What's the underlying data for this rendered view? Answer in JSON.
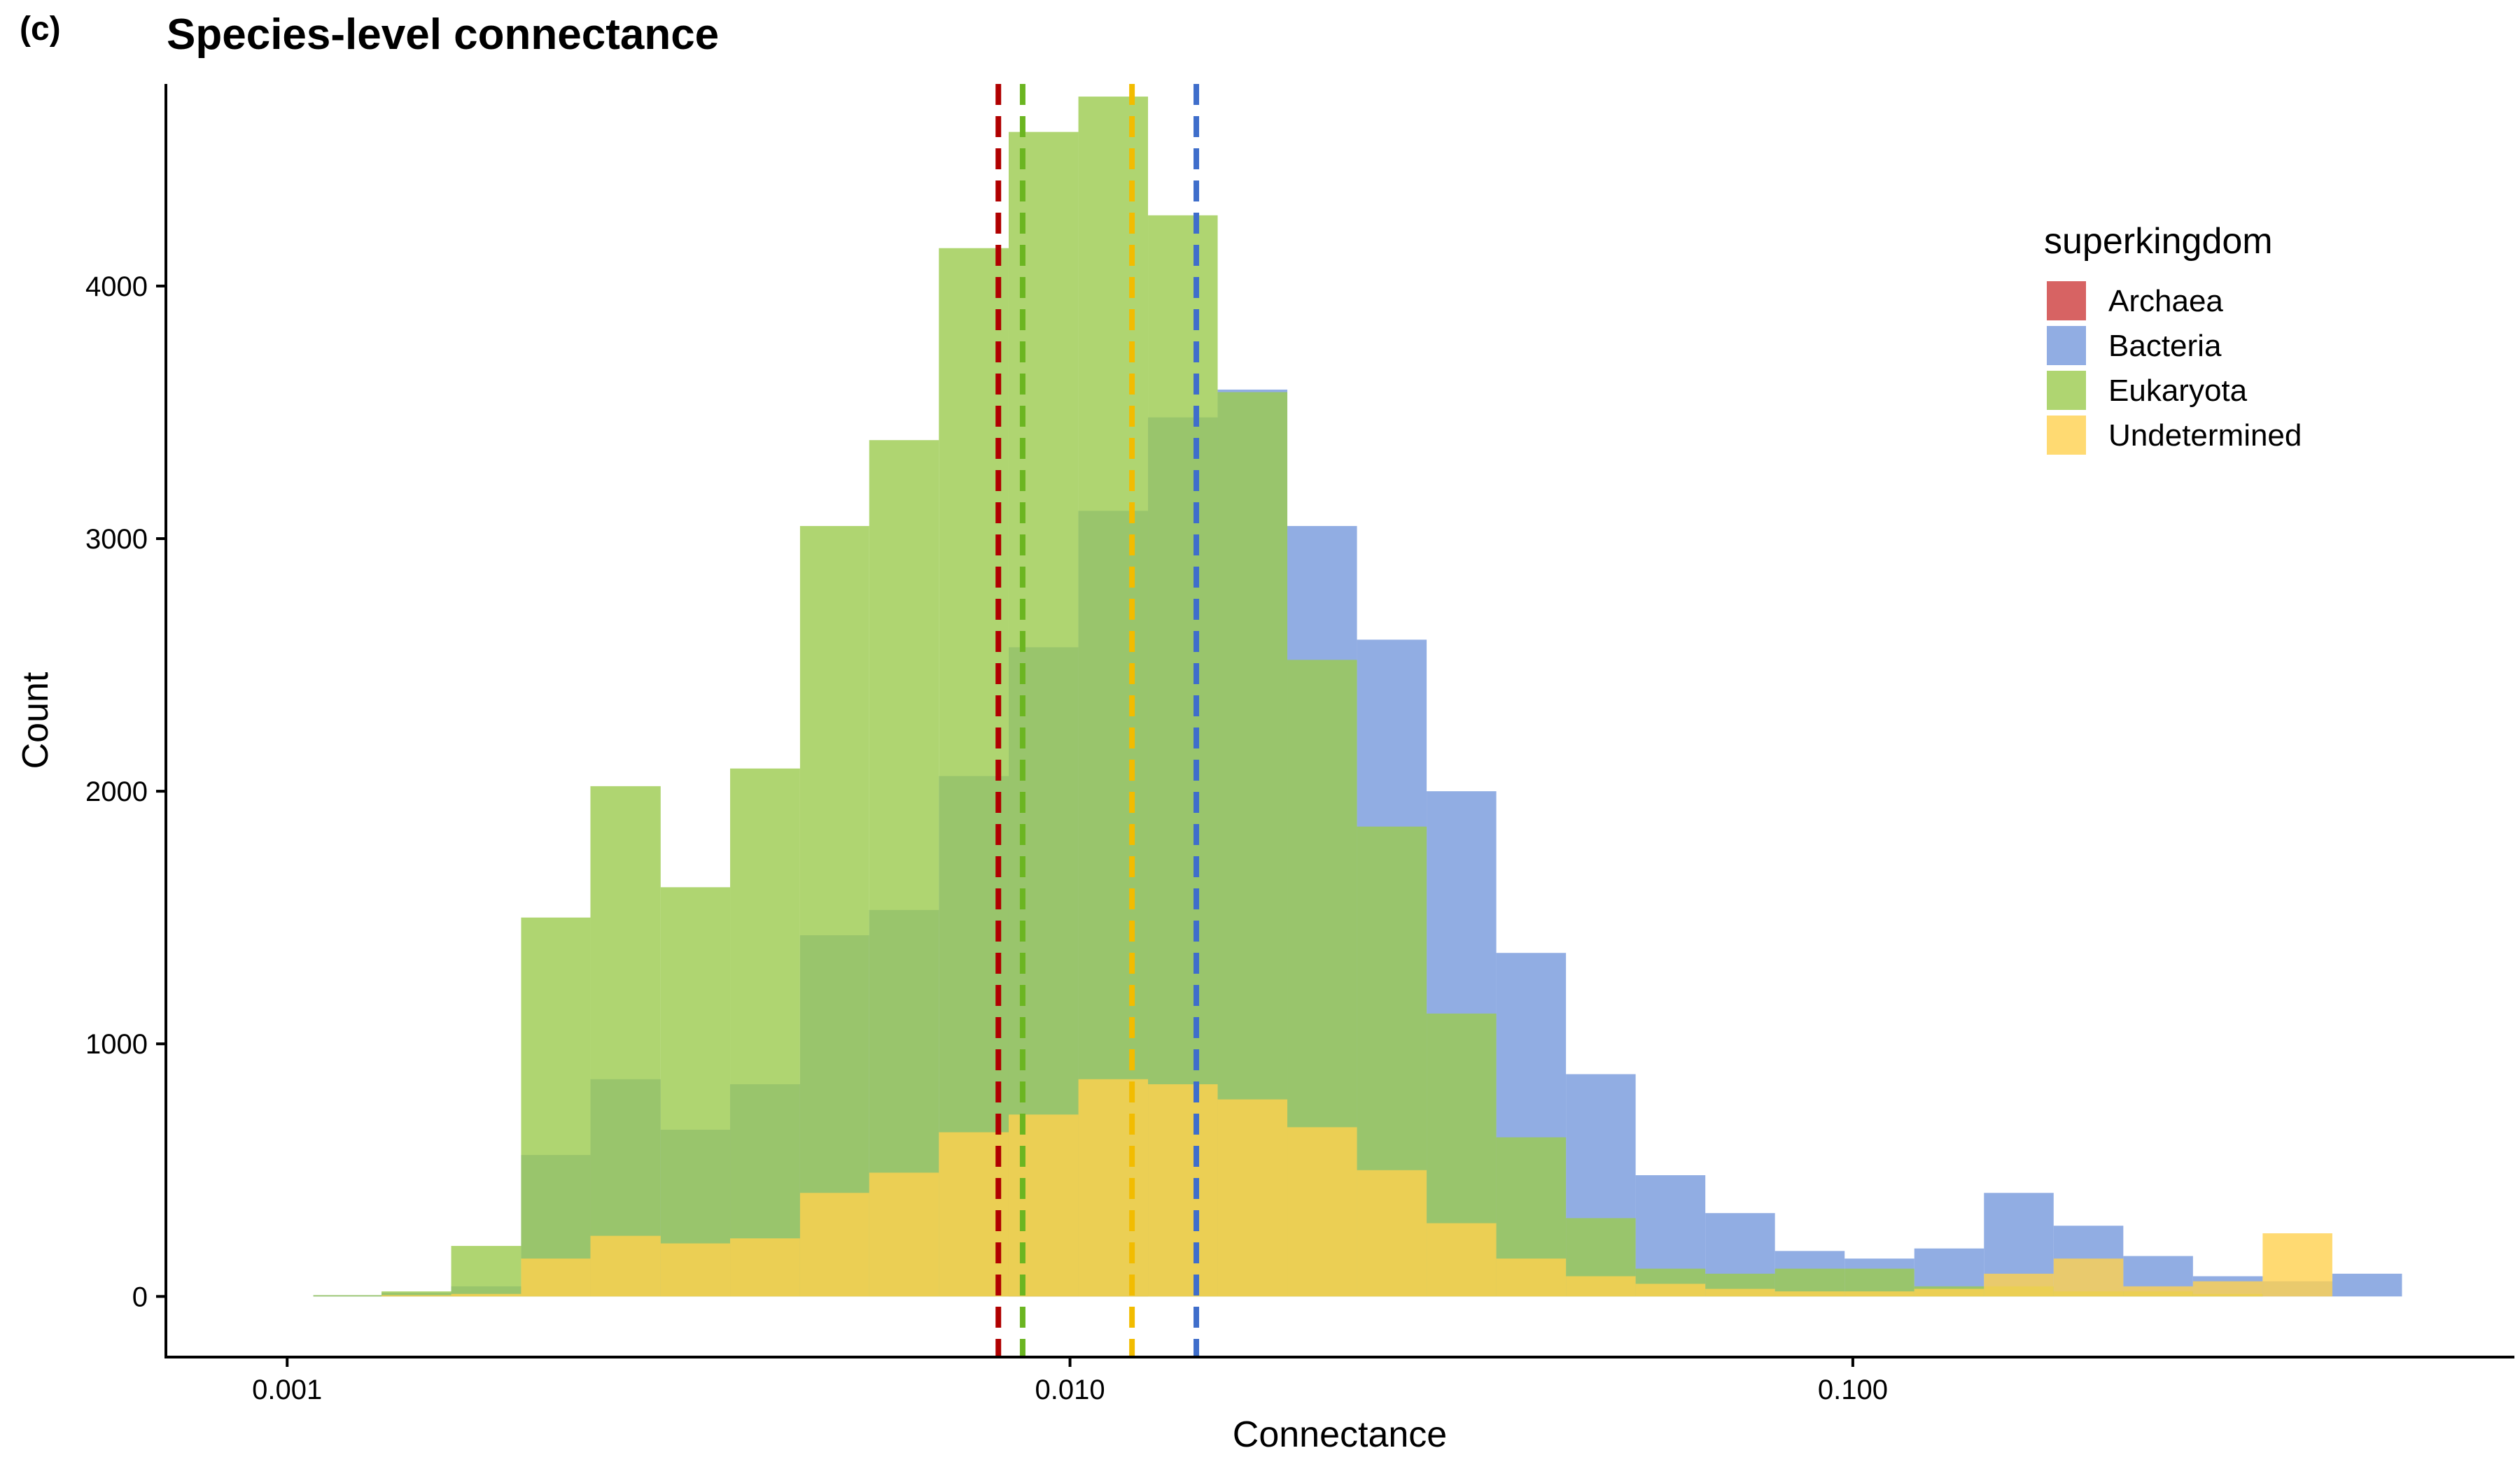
{
  "panel_label": "(c)",
  "chart_data": {
    "type": "bar",
    "title": "Species-level connectance",
    "xlabel": "Connectance",
    "ylabel": "Count",
    "x_scale": "log10",
    "xlim": [
      0.0007,
      0.7
    ],
    "ylim": [
      -240,
      4800
    ],
    "x_ticks": [
      {
        "value": 0.001,
        "label": "0.001"
      },
      {
        "value": 0.01,
        "label": "0.010"
      },
      {
        "value": 0.1,
        "label": "0.100"
      }
    ],
    "y_ticks": [
      {
        "value": 0,
        "label": "0"
      },
      {
        "value": 1000,
        "label": "1000"
      },
      {
        "value": 2000,
        "label": "2000"
      },
      {
        "value": 3000,
        "label": "3000"
      },
      {
        "value": 4000,
        "label": "4000"
      }
    ],
    "grid": false,
    "legend": {
      "title": "superkingdom",
      "position": "right",
      "entries": [
        "Archaea",
        "Bacteria",
        "Eukaryota",
        "Undetermined"
      ]
    },
    "bin_edges": [
      0.00108,
      0.00132,
      0.00162,
      0.00199,
      0.00244,
      0.003,
      0.00368,
      0.00452,
      0.00554,
      0.0068,
      0.00835,
      0.01025,
      0.01258,
      0.01544,
      0.01895,
      0.02326,
      0.02855,
      0.03504,
      0.04301,
      0.05279,
      0.0648,
      0.07953,
      0.09762,
      0.11982,
      0.14707,
      0.18052,
      0.22158,
      0.27197,
      0.33383,
      0.40975,
      0.50294
    ],
    "series": [
      {
        "name": "Archaea",
        "color": "#cd3c3c",
        "mean": 0.0081,
        "values": [
          0,
          0,
          0,
          0,
          0,
          0,
          0,
          0,
          0,
          0,
          5,
          5,
          0,
          0,
          0,
          0,
          0,
          0,
          0,
          0,
          0,
          0,
          0,
          0,
          0,
          0,
          0,
          0,
          0,
          0
        ]
      },
      {
        "name": "Bacteria",
        "color": "#7598dc",
        "mean": 0.0145,
        "values": [
          5,
          15,
          40,
          560,
          860,
          660,
          840,
          1430,
          1530,
          2060,
          2570,
          3110,
          3480,
          3590,
          3050,
          2600,
          2000,
          1360,
          880,
          480,
          330,
          180,
          150,
          190,
          410,
          280,
          160,
          80,
          60,
          90
        ]
      },
      {
        "name": "Eukaryota",
        "color": "#9bcb4e",
        "mean": 0.0087,
        "values": [
          5,
          20,
          200,
          1500,
          2020,
          1620,
          2090,
          3050,
          3390,
          4150,
          4610,
          4750,
          4280,
          3580,
          2520,
          1860,
          1120,
          630,
          310,
          110,
          90,
          110,
          110,
          40,
          40,
          20,
          20,
          10,
          0,
          0
        ]
      },
      {
        "name": "Undetermined",
        "color": "#ffd14f",
        "mean": 0.012,
        "values": [
          0,
          5,
          10,
          150,
          240,
          210,
          230,
          410,
          490,
          650,
          720,
          860,
          840,
          780,
          670,
          500,
          290,
          150,
          80,
          50,
          30,
          20,
          20,
          30,
          90,
          150,
          40,
          60,
          250,
          0
        ]
      }
    ],
    "mean_line_colors": {
      "Archaea": "#b00000",
      "Bacteria": "#3f6ecb",
      "Eukaryota": "#6bb521",
      "Undetermined": "#f2bc00"
    }
  }
}
